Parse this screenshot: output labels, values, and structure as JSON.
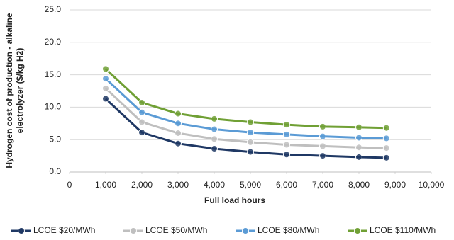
{
  "chart_data": {
    "type": "line",
    "x_label": "Full load hours",
    "y_label": [
      "Hydrogen cost of production - alkaline",
      "electrolyzer ($/kg H2)"
    ],
    "x": [
      1000,
      2000,
      3000,
      4000,
      5000,
      6000,
      7000,
      8000,
      8760
    ],
    "series": [
      {
        "name": "LCOE $20/MWh",
        "color": "#1f3864",
        "values": [
          11.3,
          6.1,
          4.4,
          3.6,
          3.1,
          2.7,
          2.5,
          2.3,
          2.2
        ]
      },
      {
        "name": "LCOE $50/MWh",
        "color": "#bfbfbf",
        "values": [
          12.9,
          7.7,
          6.0,
          5.1,
          4.6,
          4.2,
          4.0,
          3.8,
          3.7
        ]
      },
      {
        "name": "LCOE $80/MWh",
        "color": "#5b9bd5",
        "values": [
          14.4,
          9.2,
          7.5,
          6.6,
          6.1,
          5.8,
          5.5,
          5.3,
          5.2
        ]
      },
      {
        "name": "LCOE $110/MWh",
        "color": "#70a035",
        "values": [
          15.9,
          10.7,
          9.0,
          8.2,
          7.7,
          7.3,
          7.0,
          6.9,
          6.8
        ]
      }
    ],
    "xlim": [
      0,
      10000
    ],
    "xticks": [
      0,
      {
        "value": 1000,
        "label": "1,000"
      },
      {
        "value": 2000,
        "label": "2,000"
      },
      {
        "value": 3000,
        "label": "3,000"
      },
      {
        "value": 4000,
        "label": "4,000"
      },
      {
        "value": 5000,
        "label": "5,000"
      },
      {
        "value": 6000,
        "label": "6,000"
      },
      {
        "value": 7000,
        "label": "7,000"
      },
      {
        "value": 8000,
        "label": "8,000"
      },
      {
        "value": 9000,
        "label": "9,000"
      },
      {
        "value": 10000,
        "label": "10,000"
      }
    ],
    "ylim": [
      0,
      25
    ],
    "yticks": [
      {
        "value": 0,
        "label": "0.0"
      },
      {
        "value": 5,
        "label": "5.0"
      },
      {
        "value": 10,
        "label": "10.0"
      },
      {
        "value": 15,
        "label": "15.0"
      },
      {
        "value": 20,
        "label": "20.0"
      },
      {
        "value": 25,
        "label": "25.0"
      }
    ],
    "grid": true
  }
}
